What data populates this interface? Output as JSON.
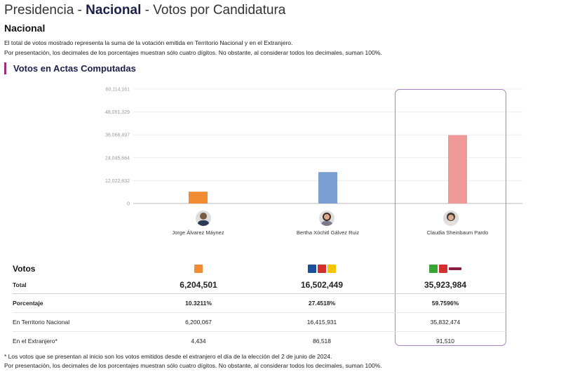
{
  "header": {
    "prefix": "Presidencia - ",
    "bold": "Nacional",
    "suffix": " - Votos por Candidatura",
    "section": "Nacional",
    "note1": "El total de votos mostrado representa la suma de la votación emitida en Territorio Nacional y en el Extranjero.",
    "note2": "Por presentación, los decimales de los porcentajes muestran sólo cuatro dígitos. No obstante, al considerar todos los decimales, suman 100%.",
    "subhead": "Votos en Actas Computadas"
  },
  "chart_data": {
    "type": "bar",
    "categories": [
      "Jorge Álvarez Máynez",
      "Bertha Xóchitl Gálvez Ruiz",
      "Claudia Sheinbaum Pardo"
    ],
    "values": [
      6204501,
      16502449,
      35923984
    ],
    "colors": [
      "#f28c33",
      "#7b9fd3",
      "#ee9898"
    ],
    "yticks": [
      "0",
      "12,022,832",
      "24,045,664",
      "36,068,497",
      "48,091,329",
      "60,114,161"
    ],
    "ylim": [
      0,
      60114161
    ],
    "grid": true,
    "highlight": "Claudia Sheinbaum Pardo"
  },
  "table": {
    "title": "Votos",
    "rows": [
      {
        "label": "Total",
        "values": [
          "6,204,501",
          "16,502,449",
          "35,923,984"
        ]
      },
      {
        "label": "Porcentaje",
        "values": [
          "10.3211%",
          "27.4518%",
          "59.7596%"
        ]
      },
      {
        "label": "En Territorio Nacional",
        "values": [
          "6,200,067",
          "16,415,931",
          "35,832,474"
        ]
      },
      {
        "label": "En el Extranjero*",
        "values": [
          "4,434",
          "86,518",
          "91,510"
        ]
      }
    ],
    "logos": [
      [
        {
          "name": "mc-logo",
          "color": "#f28c33"
        }
      ],
      [
        {
          "name": "pan-logo",
          "color": "#1a4f9c"
        },
        {
          "name": "pri-logo",
          "color": "#d32f2f"
        },
        {
          "name": "prd-logo",
          "color": "#f4c400"
        }
      ],
      [
        {
          "name": "pvem-logo",
          "color": "#3aa335"
        },
        {
          "name": "pt-logo",
          "color": "#d32f2f"
        },
        {
          "name": "morena-logo",
          "color": "#8d1b3d"
        }
      ]
    ]
  },
  "footer": {
    "line1": "* Los votos que se presentan al inicio son los votos emitidos desde el extranjero el día de la elección del 2 de junio de 2024.",
    "line2": "Por presentación, los decimales de los porcentajes muestran sólo cuatro dígitos. No obstante, al considerar todos los decimales, suman 100%."
  }
}
